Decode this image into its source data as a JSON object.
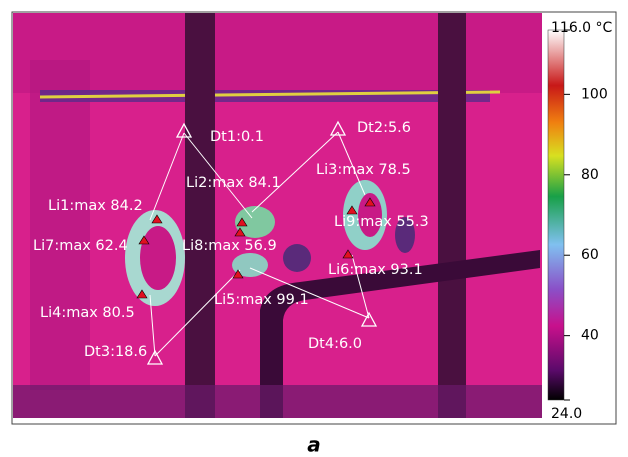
{
  "annotations": [
    "Dt1:0.1",
    "Dt2:5.6",
    "Li3:max 78.5",
    "Li2:max 84.1",
    "Li1:max 84.2",
    "Li9:max 55.3",
    "Li7:max 62.4",
    "Li8:max 56.9",
    "Li6:max 93.1",
    "Li5:max 99.1",
    "Li4:max 80.5",
    "Dt4:6.0",
    "Dt3:18.6"
  ],
  "colorbar": {
    "range": [
      24,
      116
    ],
    "ticks": [
      {
        "value": 116,
        "label": "116.0 °C"
      },
      100,
      80,
      60,
      40,
      {
        "value": 24,
        "label": "24.0"
      }
    ]
  },
  "caption": "a"
}
